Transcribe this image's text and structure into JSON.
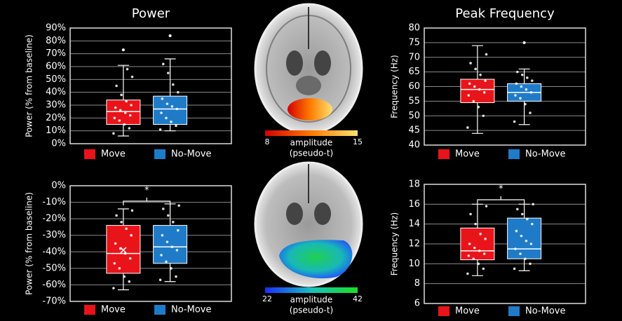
{
  "chart_data": [
    {
      "type": "box",
      "title": "Power",
      "y_label": "Power (% from baseline)",
      "ylim": [
        0,
        90
      ],
      "yticks": [
        {
          "value": 0,
          "label": "0%"
        },
        {
          "value": 10,
          "label": "10%"
        },
        {
          "value": 20,
          "label": "20%"
        },
        {
          "value": 30,
          "label": "30%"
        },
        {
          "value": 40,
          "label": "40%"
        },
        {
          "value": 50,
          "label": "50%"
        },
        {
          "value": 60,
          "label": "60%"
        },
        {
          "value": 70,
          "label": "70%"
        },
        {
          "value": 80,
          "label": "80%"
        },
        {
          "value": 90,
          "label": "90%"
        }
      ],
      "grid": true,
      "series": [
        {
          "name": "Move",
          "color": "#e8141a",
          "min": 6,
          "q1": 15,
          "median": 25,
          "q3": 34,
          "max": 61,
          "outliers": [
            73
          ],
          "points": [
            8,
            12,
            15,
            18,
            20,
            22,
            24,
            26,
            28,
            30,
            33,
            38,
            45,
            52,
            58
          ]
        },
        {
          "name": "No-Move",
          "color": "#1f7bc8",
          "min": 10,
          "q1": 15,
          "median": 27,
          "q3": 37,
          "max": 66,
          "outliers": [
            84
          ],
          "points": [
            11,
            14,
            17,
            20,
            24,
            27,
            29,
            31,
            35,
            40,
            46,
            55,
            62
          ]
        }
      ]
    },
    {
      "type": "box",
      "title": "Peak Frequency",
      "y_label": "Frequency (Hz)",
      "ylim": [
        40,
        80
      ],
      "yticks": [
        40,
        45,
        50,
        55,
        60,
        65,
        70,
        75,
        80
      ],
      "grid": true,
      "series": [
        {
          "name": "Move",
          "color": "#e8141a",
          "min": 44,
          "q1": 54.5,
          "median": 59,
          "q3": 62.5,
          "max": 74,
          "outliers": [],
          "points": [
            46,
            50,
            53,
            55,
            57,
            58,
            59,
            60,
            61,
            62,
            64,
            66,
            68,
            71
          ]
        },
        {
          "name": "No-Move",
          "color": "#1f7bc8",
          "min": 47,
          "q1": 55,
          "median": 58,
          "q3": 61,
          "max": 66,
          "outliers": [
            75
          ],
          "points": [
            48,
            51,
            54,
            56,
            57,
            58,
            59,
            60,
            61,
            62,
            63,
            64,
            65
          ]
        }
      ]
    },
    {
      "type": "box",
      "y_label": "Power (% from baseline)",
      "annotation": "*",
      "ylim": [
        -70,
        0
      ],
      "yticks": [
        {
          "value": -70,
          "label": "-70%"
        },
        {
          "value": -60,
          "label": "-60%"
        },
        {
          "value": -50,
          "label": "-50%"
        },
        {
          "value": -40,
          "label": "-40%"
        },
        {
          "value": -30,
          "label": "-30%"
        },
        {
          "value": -20,
          "label": "-20%"
        },
        {
          "value": -10,
          "label": "-10%"
        },
        {
          "value": 0,
          "label": "0%"
        }
      ],
      "grid": true,
      "series": [
        {
          "name": "Move",
          "color": "#e8141a",
          "min": -63,
          "q1": -53,
          "median": -41,
          "q3": -24,
          "max": -14,
          "mean": -39,
          "outliers": [],
          "points": [
            -62,
            -58,
            -55,
            -50,
            -47,
            -44,
            -41,
            -38,
            -35,
            -30,
            -26,
            -22,
            -18,
            -15
          ]
        },
        {
          "name": "No-Move",
          "color": "#1f7bc8",
          "min": -58,
          "q1": -47,
          "median": -37,
          "q3": -24,
          "max": -11,
          "outliers": [],
          "points": [
            -57,
            -55,
            -50,
            -46,
            -42,
            -39,
            -37,
            -34,
            -30,
            -27,
            -22,
            -18,
            -14,
            -12
          ]
        }
      ]
    },
    {
      "type": "box",
      "y_label": "Frequency (Hz)",
      "annotation": "*",
      "ylim": [
        6,
        18
      ],
      "yticks": [
        6,
        8,
        10,
        12,
        14,
        16,
        18
      ],
      "grid": true,
      "series": [
        {
          "name": "Move",
          "color": "#e8141a",
          "min": 8.8,
          "q1": 10.4,
          "median": 11.3,
          "q3": 13.6,
          "max": 16,
          "outliers": [],
          "points": [
            9,
            9.5,
            10,
            10.5,
            10.8,
            11,
            11.3,
            11.6,
            12,
            12.5,
            13,
            14,
            15,
            15.8
          ]
        },
        {
          "name": "No-Move",
          "color": "#1f7bc8",
          "min": 9.3,
          "q1": 10.5,
          "median": 11.5,
          "q3": 14.6,
          "max": 16,
          "outliers": [],
          "points": [
            9.5,
            10,
            10.5,
            11,
            11.5,
            12,
            12.3,
            12.8,
            13.3,
            14,
            14.5,
            15,
            15.5,
            16
          ]
        }
      ]
    }
  ],
  "colorbars": [
    {
      "min": 8,
      "max": 15,
      "label_line1": "amplitude",
      "label_line2": "(pseudo-t)"
    },
    {
      "min": 22,
      "max": 42,
      "label_line1": "amplitude",
      "label_line2": "(pseudo-t)"
    }
  ]
}
